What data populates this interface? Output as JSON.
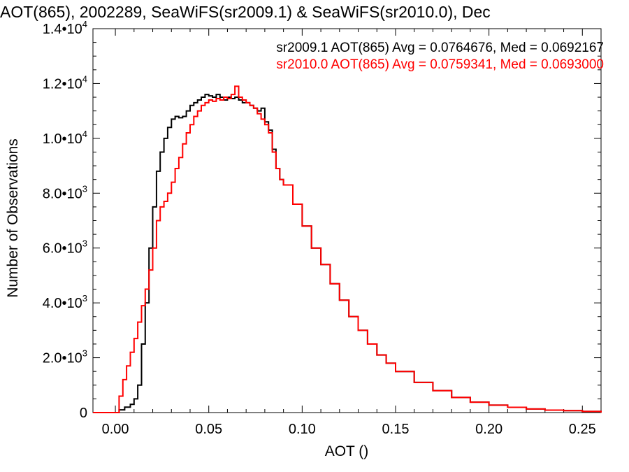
{
  "chart_data": {
    "type": "line",
    "style": "histogram-step",
    "title": "AOT(865), 2002289, SeaWiFS(sr2009.1) & SeaWiFS(sr2010.0), Dec",
    "xlabel": "AOT ()",
    "ylabel": "Number of Observations",
    "xlim": [
      -0.012,
      0.26
    ],
    "ylim": [
      0,
      14000
    ],
    "grid": false,
    "legend_position": "top-right",
    "x_ticks": [
      {
        "value": 0.0,
        "label": "0.00"
      },
      {
        "value": 0.05,
        "label": "0.05"
      },
      {
        "value": 0.1,
        "label": "0.10"
      },
      {
        "value": 0.15,
        "label": "0.15"
      },
      {
        "value": 0.2,
        "label": "0.20"
      },
      {
        "value": 0.25,
        "label": "0.25"
      }
    ],
    "y_ticks": [
      {
        "value": 0,
        "mantissa": "0",
        "exponent": ""
      },
      {
        "value": 2000,
        "mantissa": "2.0•10",
        "exponent": "3"
      },
      {
        "value": 4000,
        "mantissa": "4.0•10",
        "exponent": "3"
      },
      {
        "value": 6000,
        "mantissa": "6.0•10",
        "exponent": "3"
      },
      {
        "value": 8000,
        "mantissa": "8.0•10",
        "exponent": "3"
      },
      {
        "value": 10000,
        "mantissa": "1.0•10",
        "exponent": "4"
      },
      {
        "value": 12000,
        "mantissa": "1.2•10",
        "exponent": "4"
      },
      {
        "value": 14000,
        "mantissa": "1.4•10",
        "exponent": "4"
      }
    ],
    "legend": [
      {
        "label": "sr2009.1 AOT(865) Avg = 0.0764676, Med = 0.0692167",
        "color": "#000000"
      },
      {
        "label": "sr2010.0 AOT(865) Avg = 0.0759341, Med = 0.0693000",
        "color": "#ff0000"
      }
    ],
    "series": [
      {
        "color": "#000000",
        "x": [
          -0.012,
          0.0,
          0.002,
          0.005,
          0.008,
          0.01,
          0.012,
          0.014,
          0.016,
          0.018,
          0.02,
          0.022,
          0.024,
          0.026,
          0.028,
          0.03,
          0.032,
          0.034,
          0.036,
          0.038,
          0.04,
          0.042,
          0.044,
          0.046,
          0.048,
          0.05,
          0.052,
          0.054,
          0.056,
          0.058,
          0.06,
          0.062,
          0.064,
          0.066,
          0.068,
          0.07,
          0.072,
          0.074,
          0.076,
          0.078,
          0.08,
          0.082,
          0.084,
          0.086,
          0.088,
          0.09,
          0.095,
          0.1,
          0.105,
          0.11,
          0.115,
          0.12,
          0.125,
          0.13,
          0.135,
          0.14,
          0.145,
          0.15,
          0.16,
          0.17,
          0.18,
          0.19,
          0.2,
          0.21,
          0.22,
          0.23,
          0.24,
          0.25,
          0.26
        ],
        "y": [
          0,
          0,
          100,
          200,
          300,
          500,
          1000,
          2500,
          4000,
          6000,
          7500,
          8800,
          9500,
          10000,
          10400,
          10700,
          10800,
          10750,
          10800,
          11000,
          11200,
          11300,
          11400,
          11500,
          11600,
          11550,
          11500,
          11600,
          11500,
          11400,
          11500,
          11450,
          11500,
          11400,
          11300,
          11300,
          11200,
          11100,
          11000,
          11100,
          10600,
          10300,
          9600,
          8900,
          8500,
          8300,
          7600,
          6800,
          6000,
          5400,
          4700,
          4100,
          3500,
          3000,
          2500,
          2100,
          1800,
          1500,
          1100,
          800,
          550,
          380,
          270,
          190,
          130,
          90,
          70,
          40,
          0
        ]
      },
      {
        "color": "#ff0000",
        "x": [
          -0.012,
          0.0,
          0.002,
          0.004,
          0.006,
          0.008,
          0.01,
          0.012,
          0.014,
          0.016,
          0.018,
          0.02,
          0.022,
          0.024,
          0.026,
          0.028,
          0.03,
          0.032,
          0.034,
          0.036,
          0.038,
          0.04,
          0.042,
          0.044,
          0.046,
          0.048,
          0.05,
          0.052,
          0.054,
          0.056,
          0.058,
          0.06,
          0.062,
          0.064,
          0.066,
          0.068,
          0.07,
          0.072,
          0.074,
          0.076,
          0.078,
          0.08,
          0.082,
          0.084,
          0.086,
          0.088,
          0.09,
          0.095,
          0.1,
          0.105,
          0.11,
          0.115,
          0.12,
          0.125,
          0.13,
          0.135,
          0.14,
          0.145,
          0.15,
          0.16,
          0.17,
          0.18,
          0.19,
          0.2,
          0.21,
          0.22,
          0.23,
          0.24,
          0.25,
          0.26
        ],
        "y": [
          0,
          0,
          600,
          1200,
          1700,
          2200,
          2700,
          3300,
          3900,
          4500,
          5200,
          6000,
          7000,
          7500,
          7700,
          8000,
          8400,
          8900,
          9300,
          9800,
          10200,
          10500,
          10800,
          11000,
          11200,
          11300,
          11400,
          11350,
          11450,
          11400,
          11500,
          11450,
          11600,
          11900,
          11500,
          11400,
          11300,
          11200,
          11100,
          10900,
          10700,
          10500,
          10200,
          9500,
          8900,
          8500,
          8300,
          7600,
          6800,
          6000,
          5400,
          4700,
          4100,
          3500,
          3000,
          2500,
          2100,
          1800,
          1500,
          1100,
          800,
          550,
          380,
          270,
          190,
          130,
          90,
          70,
          40,
          0
        ]
      }
    ]
  }
}
